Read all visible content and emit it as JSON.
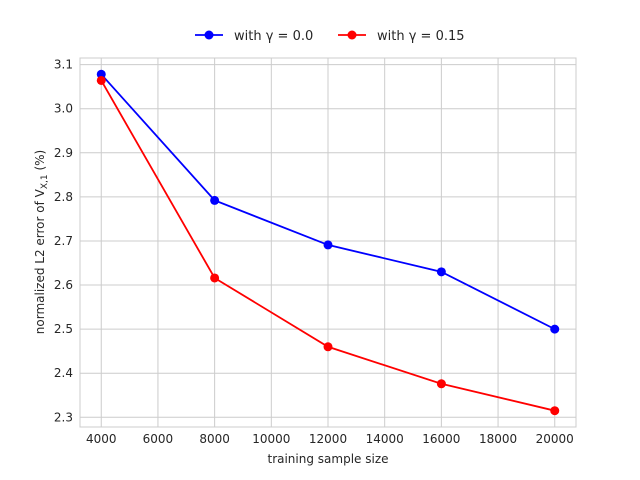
{
  "chart_data": {
    "type": "line",
    "x": [
      4000,
      8000,
      12000,
      16000,
      20000
    ],
    "series": [
      {
        "name": "with γ = 0.0",
        "color": "#0000ff",
        "values": [
          3.078,
          2.792,
          2.691,
          2.63,
          2.5
        ]
      },
      {
        "name": "with γ = 0.15",
        "color": "#ff0000",
        "values": [
          3.064,
          2.616,
          2.46,
          2.376,
          2.315
        ]
      }
    ],
    "title": "",
    "xlabel": "training sample size",
    "ylabel": "normalized L2 error of V",
    "ylabel_subscript": "X,1",
    "ylabel_suffix": " (%)",
    "xlim": [
      3250,
      20750
    ],
    "ylim": [
      2.278,
      3.115
    ],
    "xticks": [
      4000,
      6000,
      8000,
      10000,
      12000,
      14000,
      16000,
      18000,
      20000
    ],
    "yticks": [
      2.3,
      2.4,
      2.5,
      2.6,
      2.7,
      2.8,
      2.9,
      3.0,
      3.1
    ],
    "ytick_labels": [
      "2.3",
      "2.4",
      "2.5",
      "2.6",
      "2.7",
      "2.8",
      "2.9",
      "3.0",
      "3.1"
    ],
    "grid": true,
    "legend_position": "top-center"
  }
}
